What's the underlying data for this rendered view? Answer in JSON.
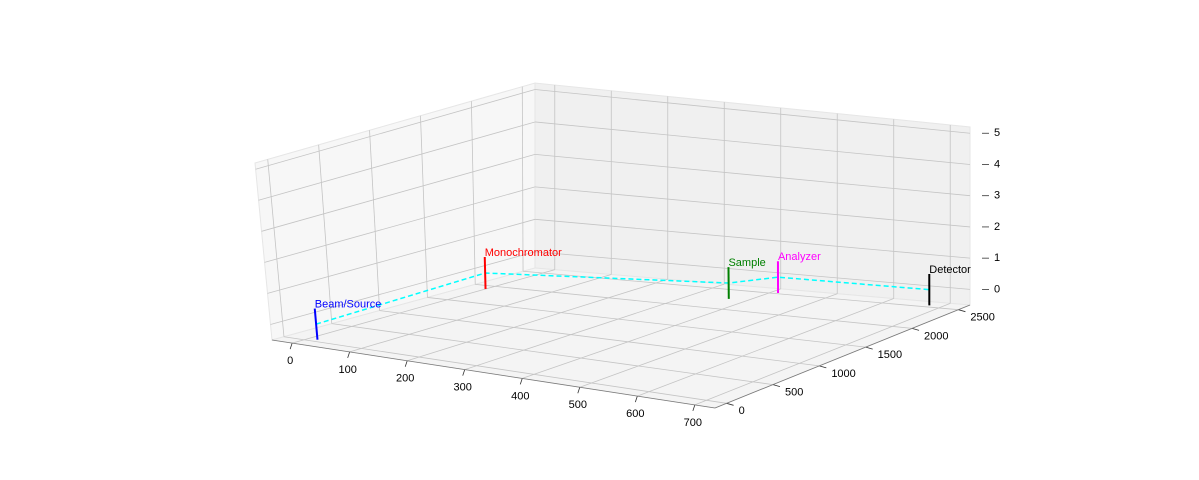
{
  "chart_data": {
    "type": "line3d",
    "components": [
      {
        "name": "Beam/Source",
        "color": "#0000ff",
        "x": 15,
        "y": 50,
        "z": [
          -0.5,
          0.5
        ]
      },
      {
        "name": "Monochromator",
        "color": "#ff0000",
        "x": 0,
        "y": 1900,
        "z": [
          -0.5,
          0.5
        ]
      },
      {
        "name": "Sample",
        "color": "#008000",
        "x": 368,
        "y": 2265,
        "z": [
          -0.5,
          0.5
        ]
      },
      {
        "name": "Analyzer",
        "color": "#ff00ff",
        "x": 413,
        "y": 2518,
        "z": [
          -0.5,
          0.5
        ]
      },
      {
        "name": "Detector",
        "color": "#000000",
        "x": 677,
        "y": 2540,
        "z": [
          -0.5,
          0.5
        ]
      }
    ],
    "path": {
      "color": "#00ffff",
      "dashed": true,
      "z": 0
    },
    "xlim": [
      -35,
      735
    ],
    "xticks": [
      0,
      100,
      200,
      300,
      400,
      500,
      600,
      700
    ],
    "ylim": [
      -125,
      2625
    ],
    "yticks": [
      0,
      500,
      1000,
      1500,
      2000,
      2500
    ],
    "zlim": [
      -0.5,
      5.2
    ],
    "zticks": [
      0,
      1,
      2,
      3,
      4,
      5
    ],
    "grid": true
  }
}
